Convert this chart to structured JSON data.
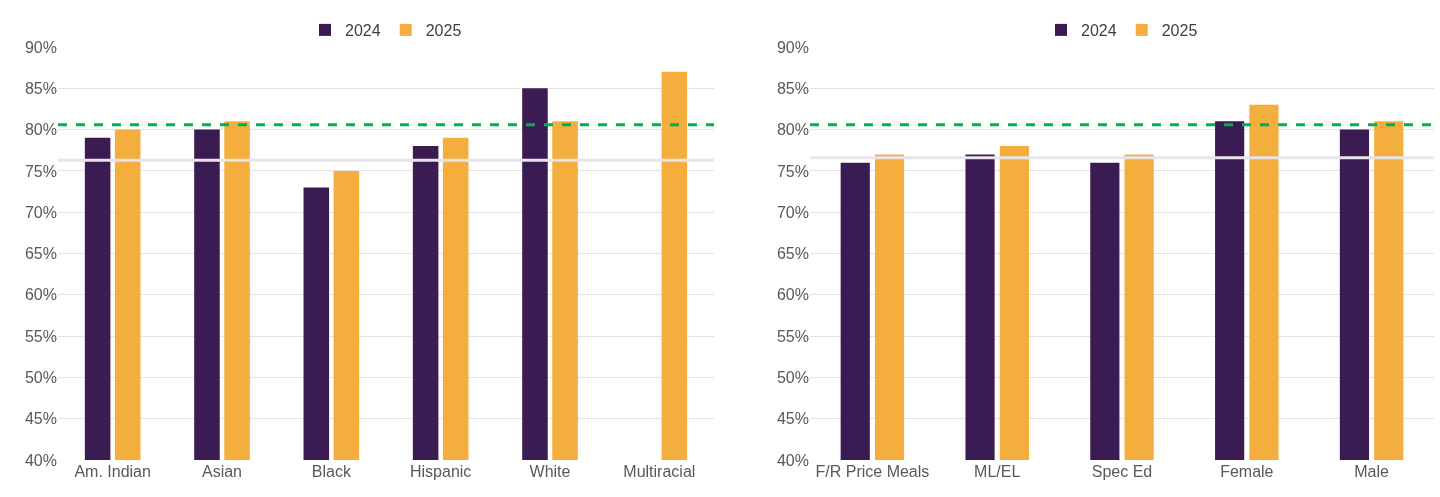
{
  "chart_data": [
    {
      "type": "bar",
      "categories": [
        "Am. Indian",
        "Asian",
        "Black",
        "Hispanic",
        "White",
        "Multiracial"
      ],
      "series": [
        {
          "name": "2024",
          "color": "#3b1c52",
          "values": [
            79,
            80,
            73,
            78,
            85,
            null
          ]
        },
        {
          "name": "2025",
          "color": "#f4ae3d",
          "values": [
            80,
            81,
            75,
            79,
            81,
            87
          ]
        }
      ],
      "ylim": [
        40,
        90
      ],
      "yticks": [
        {
          "value": 40,
          "label": "40%"
        },
        {
          "value": 45,
          "label": "45%"
        },
        {
          "value": 50,
          "label": "50%"
        },
        {
          "value": 55,
          "label": "55%"
        },
        {
          "value": 60,
          "label": "60%"
        },
        {
          "value": 65,
          "label": "65%"
        },
        {
          "value": 70,
          "label": "70%"
        },
        {
          "value": 75,
          "label": "75%"
        },
        {
          "value": 80,
          "label": "80%"
        },
        {
          "value": 85,
          "label": "85%"
        },
        {
          "value": 90,
          "label": "90%"
        }
      ],
      "ref_lines": [
        {
          "axis": "y",
          "value": 80.6,
          "color": "#00b050",
          "line_style": "dashed"
        },
        {
          "axis": "y",
          "value": 76.3,
          "color": "#e8e4ea",
          "line_style": "solid"
        }
      ],
      "grid": "y",
      "legend": "top"
    },
    {
      "type": "bar",
      "categories": [
        "F/R Price Meals",
        "ML/EL",
        "Spec Ed",
        "Female",
        "Male"
      ],
      "series": [
        {
          "name": "2024",
          "color": "#3b1c52",
          "values": [
            76,
            77,
            76,
            81,
            80
          ]
        },
        {
          "name": "2025",
          "color": "#f4ae3d",
          "values": [
            77,
            78,
            77,
            83,
            81
          ]
        }
      ],
      "ylim": [
        40,
        90
      ],
      "yticks": [
        {
          "value": 40,
          "label": "40%"
        },
        {
          "value": 45,
          "label": "45%"
        },
        {
          "value": 50,
          "label": "50%"
        },
        {
          "value": 55,
          "label": "55%"
        },
        {
          "value": 60,
          "label": "60%"
        },
        {
          "value": 65,
          "label": "65%"
        },
        {
          "value": 70,
          "label": "70%"
        },
        {
          "value": 75,
          "label": "75%"
        },
        {
          "value": 80,
          "label": "80%"
        },
        {
          "value": 85,
          "label": "85%"
        },
        {
          "value": 90,
          "label": "90%"
        }
      ],
      "ref_lines": [
        {
          "axis": "y",
          "value": 80.6,
          "color": "#00b050",
          "line_style": "dashed"
        },
        {
          "axis": "y",
          "value": 76.6,
          "color": "#e8e4ea",
          "line_style": "solid"
        }
      ],
      "grid": "y",
      "legend": "top"
    }
  ]
}
